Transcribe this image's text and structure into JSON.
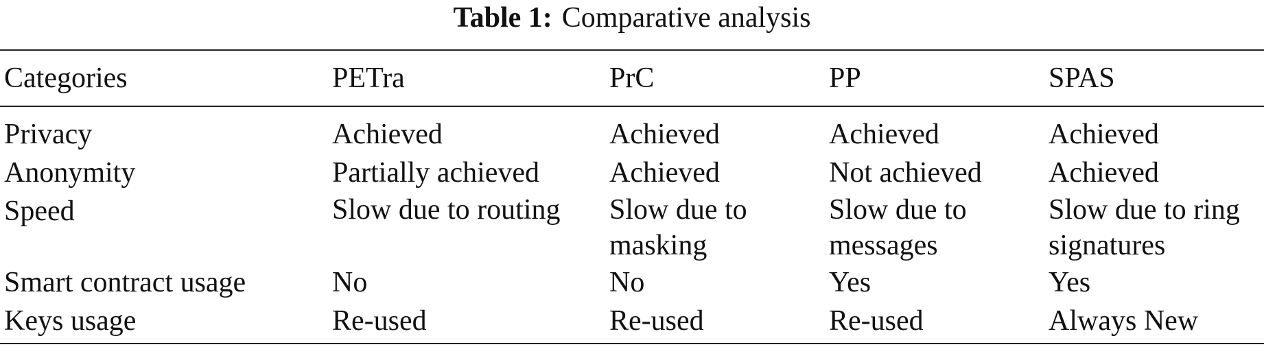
{
  "caption": {
    "label": "Table 1:",
    "title": "Comparative analysis"
  },
  "table": {
    "headers": [
      "Categories",
      "PETra",
      "PrC",
      "PP",
      "SPAS"
    ],
    "rows": [
      [
        "Privacy",
        "Achieved",
        "Achieved",
        "Achieved",
        "Achieved"
      ],
      [
        "Anonymity",
        "Partially achieved",
        "Achieved",
        "Not achieved",
        "Achieved"
      ],
      [
        "Speed",
        "Slow due to routing",
        "Slow due to masking",
        "Slow due to messages",
        "Slow due to ring signatures"
      ],
      [
        "Smart contract usage",
        "No",
        "No",
        "Yes",
        "Yes"
      ],
      [
        "Keys usage",
        "Re-used",
        "Re-used",
        "Re-used",
        "Always New"
      ]
    ]
  }
}
